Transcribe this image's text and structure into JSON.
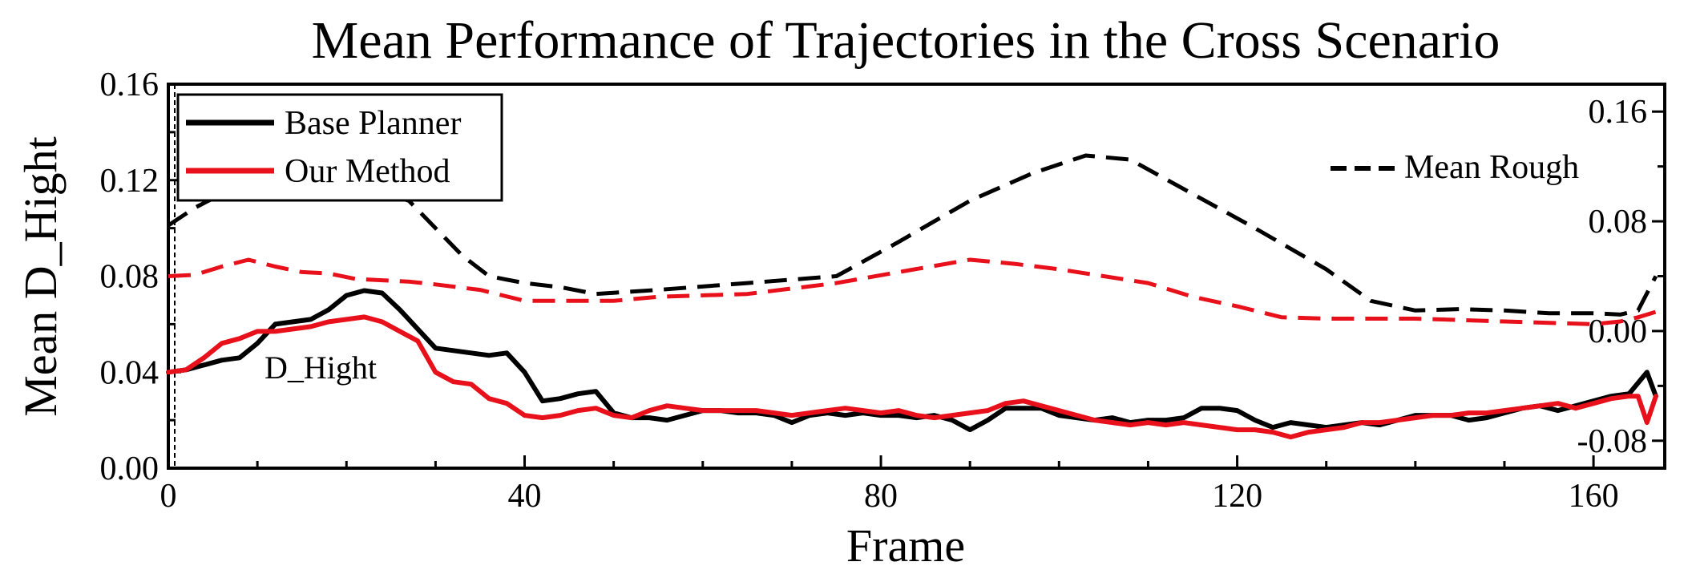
{
  "chart_data": {
    "type": "line",
    "title": "Mean Performance of Trajectories in the Cross Scenario",
    "xlabel": "Frame",
    "ylabel": "Mean D_Hight",
    "xlim": [
      0,
      168
    ],
    "ylim": [
      0,
      0.16
    ],
    "y2lim": [
      -0.1,
      0.18
    ],
    "xticks": [
      "0",
      "40",
      "80",
      "120",
      "160"
    ],
    "yticks": [
      "0.00",
      "0.04",
      "0.08",
      "0.12",
      "0.16"
    ],
    "y2ticks": [
      "-0.08",
      "0.00",
      "0.08",
      "0.16"
    ],
    "legend": {
      "location": "top-left",
      "entries": [
        "Base Planner",
        "Our Method"
      ]
    },
    "legend2": {
      "location": "top-right",
      "entries": [
        "Mean Rough"
      ]
    },
    "annotations": [
      "D_Hight"
    ],
    "grid": false,
    "colors": {
      "base": "#000000",
      "ours": "#e8101a"
    },
    "series": [
      {
        "name": "Base Planner",
        "axis": "left",
        "style": "solid",
        "color": "#000000",
        "x": [
          0,
          2,
          4,
          6,
          8,
          10,
          12,
          14,
          16,
          18,
          20,
          22,
          24,
          26,
          28,
          30,
          32,
          34,
          36,
          38,
          40,
          42,
          44,
          46,
          48,
          50,
          52,
          54,
          56,
          58,
          60,
          62,
          64,
          66,
          68,
          70,
          72,
          74,
          76,
          78,
          80,
          82,
          84,
          86,
          88,
          90,
          92,
          94,
          96,
          98,
          100,
          102,
          104,
          106,
          108,
          110,
          112,
          114,
          116,
          118,
          120,
          122,
          124,
          126,
          128,
          130,
          132,
          134,
          136,
          138,
          140,
          142,
          144,
          146,
          148,
          150,
          152,
          154,
          156,
          158,
          160,
          162,
          164,
          166,
          167
        ],
        "values": [
          0.04,
          0.041,
          0.043,
          0.045,
          0.046,
          0.052,
          0.06,
          0.061,
          0.062,
          0.066,
          0.072,
          0.074,
          0.073,
          0.066,
          0.058,
          0.05,
          0.049,
          0.048,
          0.047,
          0.048,
          0.04,
          0.028,
          0.029,
          0.031,
          0.032,
          0.023,
          0.021,
          0.021,
          0.02,
          0.022,
          0.024,
          0.024,
          0.023,
          0.023,
          0.022,
          0.019,
          0.022,
          0.023,
          0.022,
          0.023,
          0.022,
          0.022,
          0.021,
          0.022,
          0.02,
          0.016,
          0.02,
          0.025,
          0.025,
          0.025,
          0.022,
          0.021,
          0.02,
          0.021,
          0.019,
          0.02,
          0.02,
          0.021,
          0.025,
          0.025,
          0.024,
          0.02,
          0.017,
          0.019,
          0.018,
          0.017,
          0.018,
          0.019,
          0.018,
          0.02,
          0.022,
          0.022,
          0.022,
          0.02,
          0.021,
          0.023,
          0.025,
          0.026,
          0.024,
          0.026,
          0.028,
          0.03,
          0.031,
          0.04,
          0.03
        ]
      },
      {
        "name": "Our Method",
        "axis": "left",
        "style": "solid",
        "color": "#e8101a",
        "x": [
          0,
          2,
          4,
          6,
          8,
          10,
          12,
          14,
          16,
          18,
          20,
          22,
          24,
          26,
          28,
          30,
          32,
          34,
          36,
          38,
          40,
          42,
          44,
          46,
          48,
          50,
          52,
          54,
          56,
          58,
          60,
          62,
          64,
          66,
          68,
          70,
          72,
          74,
          76,
          78,
          80,
          82,
          84,
          86,
          88,
          90,
          92,
          94,
          96,
          98,
          100,
          102,
          104,
          106,
          108,
          110,
          112,
          114,
          116,
          118,
          120,
          122,
          124,
          126,
          128,
          130,
          132,
          134,
          136,
          138,
          140,
          142,
          144,
          146,
          148,
          150,
          152,
          154,
          156,
          158,
          160,
          162,
          164,
          165,
          166,
          167
        ],
        "values": [
          0.04,
          0.041,
          0.046,
          0.052,
          0.054,
          0.057,
          0.057,
          0.058,
          0.059,
          0.061,
          0.062,
          0.063,
          0.061,
          0.057,
          0.053,
          0.04,
          0.036,
          0.035,
          0.029,
          0.027,
          0.022,
          0.021,
          0.022,
          0.024,
          0.025,
          0.022,
          0.021,
          0.024,
          0.026,
          0.025,
          0.024,
          0.024,
          0.024,
          0.024,
          0.023,
          0.022,
          0.023,
          0.024,
          0.025,
          0.024,
          0.023,
          0.024,
          0.022,
          0.021,
          0.022,
          0.023,
          0.024,
          0.027,
          0.028,
          0.026,
          0.024,
          0.022,
          0.02,
          0.019,
          0.018,
          0.019,
          0.018,
          0.019,
          0.018,
          0.017,
          0.016,
          0.016,
          0.015,
          0.013,
          0.015,
          0.016,
          0.017,
          0.019,
          0.019,
          0.02,
          0.021,
          0.022,
          0.022,
          0.023,
          0.023,
          0.024,
          0.025,
          0.026,
          0.027,
          0.025,
          0.027,
          0.029,
          0.03,
          0.03,
          0.019,
          0.03
        ]
      },
      {
        "name": "Base Planner (Mean Rough)",
        "axis": "right",
        "style": "dashed",
        "color": "#000000",
        "x": [
          0,
          3,
          6,
          9,
          12,
          15,
          18,
          21,
          24,
          27,
          30,
          33,
          36,
          40,
          44,
          48,
          55,
          65,
          75,
          82,
          90,
          97,
          103,
          108,
          115,
          122,
          130,
          135,
          140,
          145,
          150,
          155,
          160,
          163,
          165,
          167
        ],
        "values": [
          0.077,
          0.09,
          0.1,
          0.103,
          0.101,
          0.101,
          0.104,
          0.1,
          0.101,
          0.095,
          0.075,
          0.055,
          0.04,
          0.035,
          0.032,
          0.027,
          0.03,
          0.035,
          0.04,
          0.065,
          0.095,
          0.115,
          0.128,
          0.125,
          0.1,
          0.075,
          0.045,
          0.022,
          0.015,
          0.016,
          0.015,
          0.013,
          0.013,
          0.012,
          0.015,
          0.04
        ]
      },
      {
        "name": "Our Method (Mean Rough)",
        "axis": "right",
        "style": "dashed",
        "color": "#e8101a",
        "x": [
          0,
          3,
          6,
          9,
          12,
          15,
          18,
          21,
          24,
          27,
          30,
          35,
          40,
          45,
          50,
          55,
          65,
          75,
          82,
          90,
          95,
          100,
          105,
          110,
          115,
          120,
          125,
          130,
          140,
          150,
          160,
          163,
          165,
          167
        ],
        "values": [
          0.04,
          0.041,
          0.047,
          0.052,
          0.047,
          0.043,
          0.042,
          0.038,
          0.037,
          0.036,
          0.034,
          0.03,
          0.022,
          0.022,
          0.022,
          0.025,
          0.027,
          0.035,
          0.043,
          0.052,
          0.049,
          0.045,
          0.04,
          0.035,
          0.025,
          0.018,
          0.01,
          0.009,
          0.009,
          0.007,
          0.005,
          0.007,
          0.01,
          0.014
        ]
      }
    ]
  }
}
